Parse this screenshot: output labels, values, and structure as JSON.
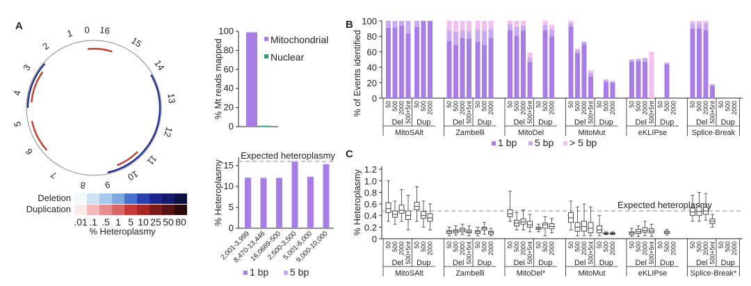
{
  "panel_labels": {
    "a": "A",
    "b": "B",
    "c": "C"
  },
  "colors": {
    "one_bp": "#a87ee6",
    "five_bp": "#c9a9f2",
    "gt_five_bp": "#f2c0ef",
    "mito_bar": "#a87ee6",
    "nuclear_bar": "#2e9e8a",
    "deletion": "#c0392b",
    "duplication": "#1c2f8f",
    "axis": "#222222",
    "dash": "#888888"
  },
  "circos": {
    "tick_labels": [
      "0",
      "16",
      "15",
      "14",
      "13",
      "12",
      "11",
      "10",
      "9",
      "8",
      "7",
      "6",
      "5",
      "4",
      "3",
      "2",
      "1"
    ],
    "deletion_color_scale": [
      "#f3f8fc",
      "#cfe1f4",
      "#a7c9ec",
      "#7fa8e0",
      "#4a6fcc",
      "#2a3fb0",
      "#1c258c",
      "#141a6a",
      "#0c1040"
    ],
    "duplication_color_scale": [
      "#fbeaea",
      "#f2b8b8",
      "#e88e8e",
      "#db6666",
      "#c73a3a",
      "#a92424",
      "#7e1a1a",
      "#561313",
      "#2a0a0a"
    ],
    "legend_deletion": "Deletion",
    "legend_duplication": "Duplication",
    "legend_ticks": [
      ".01",
      ".1",
      ".5",
      "1",
      "5",
      "10",
      "25",
      "50",
      "80"
    ],
    "legend_axis": "% Heteroplasmy"
  },
  "chart_data": [
    {
      "id": "A_reads",
      "type": "bar",
      "categories": [
        "Mitochondrial",
        "Nuclear"
      ],
      "values": [
        99,
        1
      ],
      "ylabel": "% Mt reads mapped",
      "yticks": [
        "0",
        "20",
        "40",
        "60",
        "80",
        "100"
      ],
      "ylim": [
        0,
        100
      ],
      "legend": [
        "Mitochondrial",
        "Nuclear"
      ]
    },
    {
      "id": "A_heteroplasmy",
      "type": "bar",
      "categories": [
        "2,001-3,999",
        "8,470-13,446",
        "16,0669-500",
        "2,500-3,500",
        "5,001-6,000",
        "9,000-10,000"
      ],
      "series": [
        {
          "name": "1 bp",
          "values": [
            12.0,
            11.9,
            12.0,
            15.9,
            12.3,
            15.3
          ]
        },
        {
          "name": "5 bp",
          "values": [
            0.2,
            0.3,
            0.1,
            0.2,
            0.1,
            0.1
          ]
        }
      ],
      "ylabel": "% Heteroplasmy",
      "yticks": [
        "0",
        "5",
        "10",
        "15"
      ],
      "ylim": [
        0,
        17
      ],
      "reference_line": {
        "value": 16.0,
        "label": "Expected heteroplasmy"
      },
      "legend": [
        "1 bp",
        "5 bp"
      ]
    },
    {
      "id": "B",
      "type": "bar",
      "ylabel": "% of Events identified",
      "yticks": [
        "0",
        "20",
        "40",
        "60",
        "80",
        "100"
      ],
      "ylim": [
        0,
        100
      ],
      "x_tick_labels": [
        "50",
        "500",
        "2000",
        "500+5nt",
        "50",
        "500",
        "2000"
      ],
      "subgroup_labels": [
        "Del",
        "Dup"
      ],
      "tools": [
        "MitoSAlt",
        "Zambelli",
        "MitoDel",
        "MitoMut",
        "eKLIPse",
        "Splice-Break"
      ],
      "series_names": [
        "1 bp",
        "5 bp",
        "> 5 bp"
      ],
      "legend": [
        "1 bp",
        "5 bp",
        "> 5 bp"
      ],
      "groups": [
        {
          "tool": "MitoSAlt",
          "bars": [
            [
              91,
              9,
              0
            ],
            [
              91,
              9,
              0
            ],
            [
              94,
              6,
              0
            ],
            [
              84,
              16,
              0
            ],
            [
              92,
              8,
              0
            ],
            [
              100,
              0,
              0
            ],
            [
              100,
              0,
              0
            ]
          ]
        },
        {
          "tool": "Zambelli",
          "bars": [
            [
              74,
              14,
              12
            ],
            [
              69,
              17,
              14
            ],
            [
              78,
              10,
              12
            ],
            [
              77,
              10,
              13
            ],
            [
              73,
              16,
              11
            ],
            [
              69,
              18,
              13
            ],
            [
              78,
              12,
              10
            ]
          ]
        },
        {
          "tool": "MitoDel",
          "bars": [
            [
              88,
              8,
              4
            ],
            [
              81,
              11,
              8
            ],
            [
              88,
              6,
              6
            ],
            [
              47,
              5,
              7
            ],
            [
              0,
              0,
              0
            ],
            [
              88,
              7,
              5
            ],
            [
              80,
              9,
              6
            ]
          ]
        },
        {
          "tool": "MitoMut",
          "bars": [
            [
              93,
              4,
              3
            ],
            [
              58,
              4,
              2
            ],
            [
              70,
              3,
              0
            ],
            [
              28,
              5,
              3
            ],
            [
              0,
              0,
              0
            ],
            [
              21,
              3,
              0
            ],
            [
              20,
              2,
              0
            ]
          ]
        },
        {
          "tool": "eKLIPse",
          "bars": [
            [
              47,
              3,
              0
            ],
            [
              48,
              3,
              0
            ],
            [
              47,
              5,
              0
            ],
            [
              0,
              0,
              60
            ],
            [
              0,
              0,
              0
            ],
            [
              44,
              2,
              0
            ],
            [
              0,
              0,
              0
            ]
          ]
        },
        {
          "tool": "Splice-Break",
          "bars": [
            [
              90,
              7,
              3
            ],
            [
              90,
              7,
              3
            ],
            [
              88,
              9,
              3
            ],
            [
              16,
              2,
              0
            ],
            [
              0,
              0,
              0
            ],
            [
              0,
              0,
              0
            ],
            [
              0,
              0,
              0
            ]
          ]
        }
      ]
    },
    {
      "id": "C",
      "type": "box",
      "ylabel": "% Heteroplasmy",
      "yticks": [
        "0",
        "0.2",
        "0.4",
        "0.6",
        "0.8",
        "1.0",
        "1.2"
      ],
      "ylim": [
        0,
        1.25
      ],
      "reference_line": {
        "value": 0.48,
        "label": "Expected heteroplasmy"
      },
      "x_tick_labels": [
        "50",
        "500",
        "2000",
        "500+5nt",
        "50",
        "500",
        "2000"
      ],
      "subgroup_labels": [
        "Del",
        "Dup"
      ],
      "tools": [
        "MitoSAlt",
        "Zambelli",
        "MitoDel*",
        "MitoMut",
        "eKLIPse",
        "Splice-Break*"
      ],
      "groups": [
        {
          "tool": "MitoSAlt",
          "boxes": [
            [
              0.3,
              0.45,
              0.52,
              0.62,
              1.0
            ],
            [
              0.25,
              0.37,
              0.42,
              0.48,
              0.65
            ],
            [
              0.3,
              0.44,
              0.49,
              0.58,
              0.85
            ],
            [
              0.15,
              0.33,
              0.4,
              0.48,
              0.75
            ],
            [
              0.3,
              0.5,
              0.56,
              0.63,
              0.9
            ],
            [
              0.2,
              0.35,
              0.4,
              0.47,
              0.65
            ],
            [
              0.15,
              0.3,
              0.36,
              0.43,
              0.6
            ]
          ]
        },
        {
          "tool": "Zambelli",
          "boxes": [
            [
              0.05,
              0.09,
              0.12,
              0.14,
              0.2
            ],
            [
              0.06,
              0.1,
              0.13,
              0.15,
              0.22
            ],
            [
              0.07,
              0.12,
              0.15,
              0.18,
              0.25
            ],
            [
              0.05,
              0.1,
              0.12,
              0.15,
              0.22
            ],
            [
              0.05,
              0.09,
              0.12,
              0.14,
              0.2
            ],
            [
              0.08,
              0.15,
              0.18,
              0.2,
              0.28
            ],
            [
              0.05,
              0.08,
              0.11,
              0.13,
              0.18
            ]
          ]
        },
        {
          "tool": "MitoDel*",
          "boxes": [
            [
              0.3,
              0.38,
              0.43,
              0.5,
              0.82
            ],
            [
              0.15,
              0.22,
              0.27,
              0.32,
              0.45
            ],
            [
              0.15,
              0.25,
              0.29,
              0.34,
              0.5
            ],
            [
              0.12,
              0.2,
              0.24,
              0.3,
              0.42
            ],
            [
              0.12,
              0.16,
              0.18,
              0.2,
              0.25
            ],
            [
              0.05,
              0.18,
              0.24,
              0.27,
              0.38
            ],
            [
              0.1,
              0.17,
              0.21,
              0.26,
              0.35
            ]
          ]
        },
        {
          "tool": "MitoMut",
          "boxes": [
            [
              0.15,
              0.28,
              0.36,
              0.45,
              0.65
            ],
            [
              0.05,
              0.13,
              0.2,
              0.28,
              0.55
            ],
            [
              0.05,
              0.13,
              0.21,
              0.3,
              0.6
            ],
            [
              0.05,
              0.1,
              0.18,
              0.28,
              0.55
            ],
            [
              0.05,
              0.1,
              0.15,
              0.22,
              0.4
            ],
            [
              0.07,
              0.08,
              0.09,
              0.1,
              0.12
            ],
            [
              0.07,
              0.08,
              0.09,
              0.1,
              0.12
            ]
          ]
        },
        {
          "tool": "eKLIPse",
          "boxes": [
            [
              0.04,
              0.07,
              0.1,
              0.12,
              0.18
            ],
            [
              0.04,
              0.09,
              0.12,
              0.16,
              0.22
            ],
            [
              0.05,
              0.11,
              0.14,
              0.19,
              0.3
            ],
            [
              0.04,
              0.1,
              0.13,
              0.17,
              0.25
            ],
            null,
            [
              0.06,
              0.09,
              0.11,
              0.13,
              0.16
            ],
            null
          ]
        },
        {
          "tool": "Splice-Break*",
          "boxes": [
            [
              0.3,
              0.4,
              0.46,
              0.53,
              0.75
            ],
            [
              0.3,
              0.4,
              0.47,
              0.55,
              0.8
            ],
            [
              0.32,
              0.42,
              0.48,
              0.54,
              0.78
            ],
            [
              0.2,
              0.26,
              0.3,
              0.34,
              0.42
            ],
            null,
            null,
            null
          ]
        }
      ]
    }
  ]
}
